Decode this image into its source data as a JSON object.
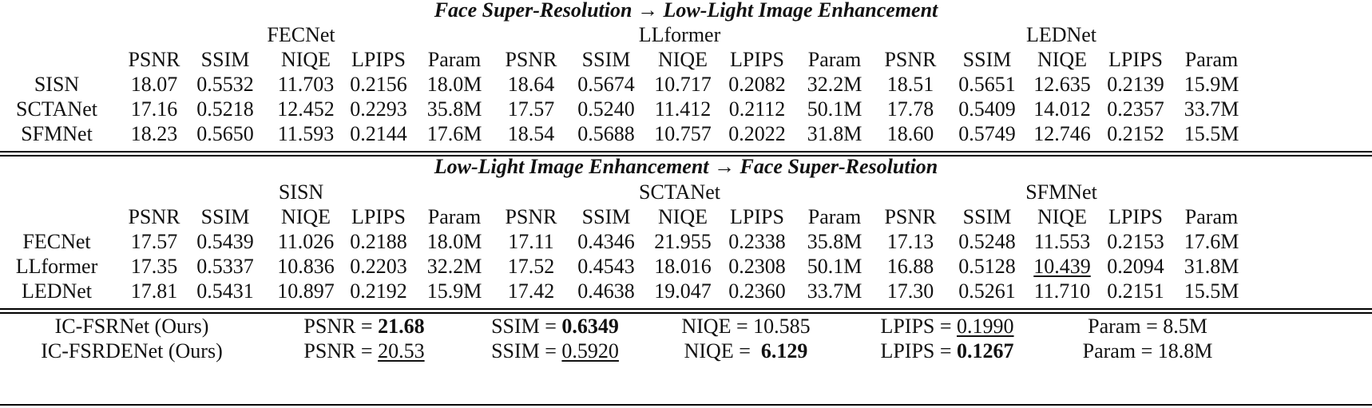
{
  "top": {
    "title": "Face Super-Resolution → Low-Light Image Enhancement",
    "groups": [
      "FECNet",
      "LLformer",
      "LEDNet"
    ],
    "metrics": [
      "PSNR",
      "SSIM",
      "NIQE",
      "LPIPS",
      "Param",
      "PSNR",
      "SSIM",
      "NIQE",
      "LPIPS",
      "Param",
      "PSNR",
      "SSIM",
      "NIQE",
      "LPIPS",
      "Param"
    ],
    "rows": [
      {
        "name": "SISN",
        "cells": [
          "18.07",
          "0.5532",
          "11.703",
          "0.2156",
          "18.0M",
          "18.64",
          "0.5674",
          "10.717",
          "0.2082",
          "32.2M",
          "18.51",
          "0.5651",
          "12.635",
          "0.2139",
          "15.9M"
        ]
      },
      {
        "name": "SCTANet",
        "cells": [
          "17.16",
          "0.5218",
          "12.452",
          "0.2293",
          "35.8M",
          "17.57",
          "0.5240",
          "11.412",
          "0.2112",
          "50.1M",
          "17.78",
          "0.5409",
          "14.012",
          "0.2357",
          "33.7M"
        ]
      },
      {
        "name": "SFMNet",
        "cells": [
          "18.23",
          "0.5650",
          "11.593",
          "0.2144",
          "17.6M",
          "18.54",
          "0.5688",
          "10.757",
          "0.2022",
          "31.8M",
          "18.60",
          "0.5749",
          "12.746",
          "0.2152",
          "15.5M"
        ]
      }
    ]
  },
  "bottom": {
    "title": "Low-Light Image Enhancement → Face Super-Resolution",
    "groups": [
      "SISN",
      "SCTANet",
      "SFMNet"
    ],
    "metrics": [
      "PSNR",
      "SSIM",
      "NIQE",
      "LPIPS",
      "Param",
      "PSNR",
      "SSIM",
      "NIQE",
      "LPIPS",
      "Param",
      "PSNR",
      "SSIM",
      "NIQE",
      "LPIPS",
      "Param"
    ],
    "rows": [
      {
        "name": "FECNet",
        "cells": [
          "17.57",
          "0.5439",
          "11.026",
          "0.2188",
          "18.0M",
          "17.11",
          "0.4346",
          "21.955",
          "0.2338",
          "35.8M",
          "17.13",
          "0.5248",
          "11.553",
          "0.2153",
          "17.6M"
        ]
      },
      {
        "name": "LLformer",
        "cells": [
          "17.35",
          "0.5337",
          "10.836",
          "0.2203",
          "32.2M",
          "17.52",
          "0.4543",
          "18.016",
          "0.2308",
          "50.1M",
          "16.88",
          "0.5128",
          "10.439",
          "0.2094",
          "31.8M"
        ],
        "underline": [
          12
        ]
      },
      {
        "name": "LEDNet",
        "cells": [
          "17.81",
          "0.5431",
          "10.897",
          "0.2192",
          "15.9M",
          "17.42",
          "0.4638",
          "19.047",
          "0.2360",
          "33.7M",
          "17.30",
          "0.5261",
          "11.710",
          "0.2151",
          "15.5M"
        ]
      }
    ]
  },
  "ours": [
    {
      "name": "IC-FSRNet (Ours)",
      "items": [
        {
          "label": "PSNR = ",
          "value": "21.68",
          "style": "bold"
        },
        {
          "label": "SSIM = ",
          "value": "0.6349",
          "style": "bold"
        },
        {
          "label": "NIQE = ",
          "value": "10.585",
          "style": ""
        },
        {
          "label": "LPIPS = ",
          "value": "0.1990",
          "style": "underline"
        },
        {
          "label": "Param = ",
          "value": "8.5M",
          "style": ""
        }
      ]
    },
    {
      "name": "IC-FSRDENet (Ours)",
      "items": [
        {
          "label": "PSNR = ",
          "value": "20.53",
          "style": "underline"
        },
        {
          "label": "SSIM = ",
          "value": "0.5920",
          "style": "underline"
        },
        {
          "label": "NIQE =  ",
          "value": "6.129",
          "style": "bold"
        },
        {
          "label": "LPIPS = ",
          "value": "0.1267",
          "style": "bold"
        },
        {
          "label": "Param = ",
          "value": "18.8M",
          "style": ""
        }
      ]
    }
  ]
}
